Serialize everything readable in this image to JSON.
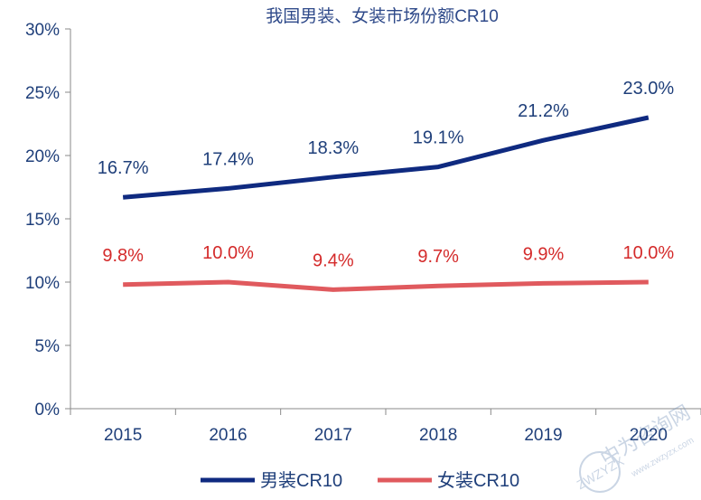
{
  "chart_data": {
    "type": "line",
    "title": "我国男装、女装市场份额CR10",
    "categories": [
      "2015",
      "2016",
      "2017",
      "2018",
      "2019",
      "2020"
    ],
    "ylim": [
      0,
      30
    ],
    "yticks": [
      "0%",
      "5%",
      "10%",
      "15%",
      "20%",
      "25%",
      "30%"
    ],
    "grid": false,
    "legend_position": "bottom",
    "series": [
      {
        "name": "男装CR10",
        "color": "#0f2a80",
        "label_color": "#1f3f7a",
        "values": [
          16.7,
          17.4,
          18.3,
          19.1,
          21.2,
          23.0
        ],
        "labels": [
          "16.7%",
          "17.4%",
          "18.3%",
          "19.1%",
          "21.2%",
          "23.0%"
        ]
      },
      {
        "name": "女装CR10",
        "color": "#e05a5e",
        "label_color": "#d42a2a",
        "values": [
          9.8,
          10.0,
          9.4,
          9.7,
          9.9,
          10.0
        ],
        "labels": [
          "9.8%",
          "10.0%",
          "9.4%",
          "9.7%",
          "9.9%",
          "10.0%"
        ]
      }
    ]
  },
  "watermark": {
    "text": "中为咨询网",
    "subtext": "ZWZYZX",
    "url": "www.zwzyzx.com"
  }
}
